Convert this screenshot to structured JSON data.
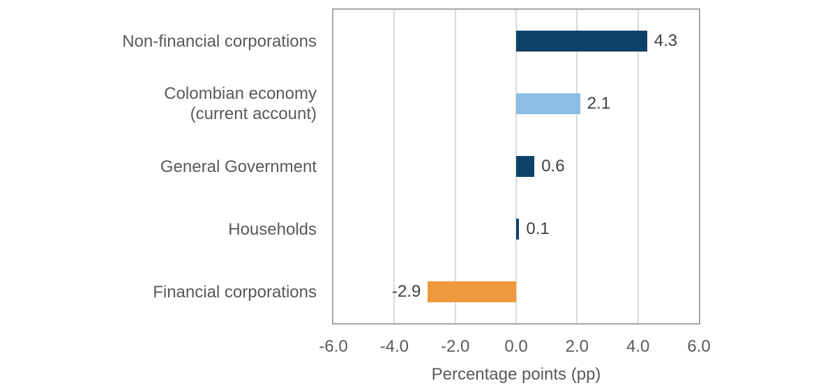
{
  "chart_data": {
    "type": "bar",
    "orientation": "horizontal",
    "title": "",
    "categories": [
      "Non-financial corporations",
      "Colombian economy (current account)",
      "General Government",
      "Households",
      "Financial corporations"
    ],
    "category_lines": [
      [
        "Non-financial corporations"
      ],
      [
        "Colombian economy",
        "(current account)"
      ],
      [
        "General Government"
      ],
      [
        "Households"
      ],
      [
        "Financial corporations"
      ]
    ],
    "values": [
      4.3,
      2.1,
      0.6,
      0.1,
      -2.9
    ],
    "value_labels": [
      "4.3",
      "2.1",
      "0.6",
      "0.1",
      "-2.9"
    ],
    "bar_colors": [
      "#0E4168",
      "#8DBDE3",
      "#0E4168",
      "#0E4168",
      "#EE9A3C"
    ],
    "xlabel": "Percentage points (pp)",
    "ylabel": "",
    "xlim": [
      -6.0,
      6.0
    ],
    "xtick_values": [
      -6.0,
      -4.0,
      -2.0,
      0.0,
      2.0,
      4.0,
      6.0
    ],
    "xtick_labels": [
      "-6.0",
      "-4.0",
      "-2.0",
      "0.0",
      "2.0",
      "4.0",
      "6.0"
    ],
    "grid": true,
    "legend": "none"
  },
  "colors": {
    "dark_blue": "#0E4168",
    "light_blue": "#8DBDE3",
    "orange": "#EE9A3C",
    "axis_text": "#595959",
    "value_text": "#404040",
    "gridline": "#d9d9d9",
    "frame": "#a6a6a6",
    "background": "#ffffff"
  }
}
